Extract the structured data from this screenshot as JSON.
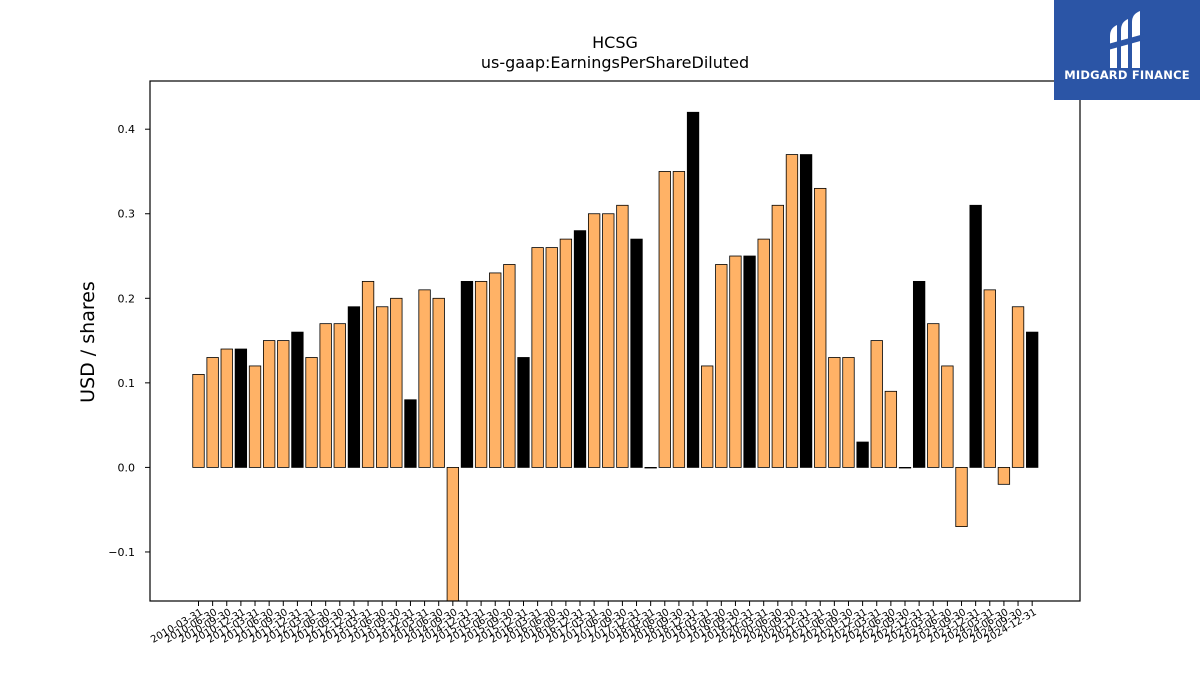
{
  "logo": {
    "text": "MIDGARD FINANCE",
    "icon": "midgard-logo-icon"
  },
  "chart_data": {
    "type": "bar",
    "title": "HCSG",
    "subtitle": "us-gaap:EarningsPerShareDiluted",
    "xlabel": "",
    "ylabel": "USD / shares",
    "ylim": [
      -0.158,
      0.457
    ],
    "yticks": [
      -0.1,
      0.0,
      0.1,
      0.2,
      0.3,
      0.4
    ],
    "ytick_labels": [
      "−0.1",
      "0.0",
      "0.1",
      "0.2",
      "0.3",
      "0.4"
    ],
    "grid": false,
    "colors": {
      "quarter": "#ffb266",
      "annual": "#000000",
      "edge": "#000000"
    },
    "categories": [
      "2010-03-31",
      "2010-06-30",
      "2010-09-30",
      "2010-12-31",
      "2011-03-31",
      "2011-06-30",
      "2011-09-30",
      "2011-12-31",
      "2012-03-31",
      "2012-06-30",
      "2012-09-30",
      "2012-12-31",
      "2013-03-31",
      "2013-06-30",
      "2013-09-30",
      "2013-12-31",
      "2014-03-31",
      "2014-06-30",
      "2014-09-30",
      "2014-12-31",
      "2015-03-31",
      "2015-06-30",
      "2015-09-30",
      "2015-12-31",
      "2016-03-31",
      "2016-06-30",
      "2016-09-30",
      "2016-12-31",
      "2017-03-31",
      "2017-06-30",
      "2017-09-30",
      "2017-12-31",
      "2018-03-31",
      "2018-06-30",
      "2018-09-30",
      "2018-12-31",
      "2019-03-31",
      "2019-06-30",
      "2019-09-30",
      "2019-12-31",
      "2020-03-31",
      "2020-06-30",
      "2020-09-30",
      "2020-12-31",
      "2021-03-31",
      "2021-06-30",
      "2021-09-30",
      "2021-12-31",
      "2022-03-31",
      "2022-06-30",
      "2022-09-30",
      "2022-12-31",
      "2023-03-31",
      "2023-06-30",
      "2023-09-30",
      "2023-12-31",
      "2024-03-31",
      "2024-06-30",
      "2024-09-30",
      "2024-12-31"
    ],
    "values": [
      0.11,
      0.13,
      0.14,
      0.14,
      0.12,
      0.15,
      0.15,
      0.16,
      0.13,
      0.17,
      0.17,
      0.19,
      0.22,
      0.19,
      0.2,
      0.08,
      0.21,
      0.2,
      -0.16,
      0.22,
      0.22,
      0.23,
      0.24,
      0.13,
      0.26,
      0.26,
      0.27,
      0.28,
      0.3,
      0.3,
      0.31,
      0.27,
      0.0,
      0.35,
      0.35,
      0.42,
      0.12,
      0.24,
      0.25,
      0.25,
      0.27,
      0.31,
      0.37,
      0.37,
      0.33,
      0.13,
      0.13,
      0.03,
      0.15,
      0.09,
      0.0,
      0.22,
      0.17,
      0.12,
      -0.07,
      0.31,
      0.21,
      -0.02,
      0.19,
      0.16
    ],
    "annual": [
      false,
      false,
      false,
      true,
      false,
      false,
      false,
      true,
      false,
      false,
      false,
      true,
      false,
      false,
      false,
      true,
      false,
      false,
      false,
      true,
      false,
      false,
      false,
      true,
      false,
      false,
      false,
      true,
      false,
      false,
      false,
      true,
      false,
      false,
      false,
      true,
      false,
      false,
      false,
      true,
      false,
      false,
      false,
      true,
      false,
      false,
      false,
      true,
      false,
      false,
      false,
      true,
      false,
      false,
      false,
      true,
      false,
      false,
      false,
      true
    ]
  }
}
